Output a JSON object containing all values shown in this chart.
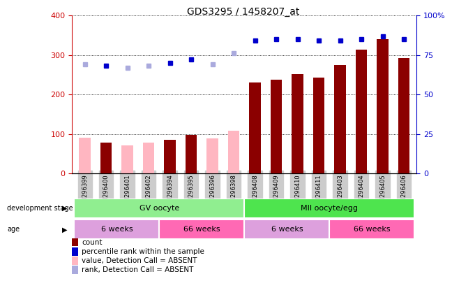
{
  "title": "GDS3295 / 1458207_at",
  "samples": [
    "GSM296399",
    "GSM296400",
    "GSM296401",
    "GSM296402",
    "GSM296394",
    "GSM296395",
    "GSM296396",
    "GSM296398",
    "GSM296408",
    "GSM296409",
    "GSM296410",
    "GSM296411",
    "GSM296403",
    "GSM296404",
    "GSM296405",
    "GSM296406"
  ],
  "count_values": [
    null,
    78,
    null,
    null,
    85,
    98,
    null,
    null,
    230,
    238,
    252,
    243,
    274,
    313,
    340,
    292
  ],
  "count_absent": [
    90,
    null,
    70,
    78,
    null,
    null,
    88,
    108,
    null,
    null,
    null,
    null,
    null,
    null,
    null,
    null
  ],
  "rank_values": [
    null,
    68,
    null,
    null,
    70,
    72,
    null,
    null,
    84,
    85,
    85,
    84,
    84,
    85,
    87,
    85
  ],
  "rank_absent": [
    69,
    null,
    67,
    68,
    null,
    null,
    69,
    76,
    null,
    null,
    null,
    null,
    null,
    null,
    null,
    null
  ],
  "ylim_left": [
    0,
    400
  ],
  "ylim_right": [
    0,
    100
  ],
  "yticks_left": [
    0,
    100,
    200,
    300,
    400
  ],
  "yticks_right": [
    0,
    25,
    50,
    75,
    100
  ],
  "ytick_labels_right": [
    "0",
    "25",
    "50",
    "75",
    "100%"
  ],
  "dev_stage_groups": [
    {
      "label": "GV oocyte",
      "start": 0,
      "end": 7,
      "color": "#90EE90"
    },
    {
      "label": "MII oocyte/egg",
      "start": 8,
      "end": 15,
      "color": "#4EE44E"
    }
  ],
  "age_groups": [
    {
      "label": "6 weeks",
      "start": 0,
      "end": 3,
      "color": "#DDA0DD"
    },
    {
      "label": "66 weeks",
      "start": 4,
      "end": 7,
      "color": "#FF69B4"
    },
    {
      "label": "6 weeks",
      "start": 8,
      "end": 11,
      "color": "#DDA0DD"
    },
    {
      "label": "66 weeks",
      "start": 12,
      "end": 15,
      "color": "#FF69B4"
    }
  ],
  "bar_color_present": "#8B0000",
  "bar_color_absent": "#FFB6C1",
  "rank_color_present": "#0000CC",
  "rank_color_absent": "#AAAADD",
  "bar_width": 0.55,
  "bg_color": "#FFFFFF",
  "plot_bg": "#FFFFFF",
  "tick_label_color_left": "#CC0000",
  "tick_label_color_right": "#0000CC",
  "xtick_bg": "#CCCCCC",
  "legend_items": [
    {
      "color": "#8B0000",
      "label": "count"
    },
    {
      "color": "#0000CC",
      "label": "percentile rank within the sample"
    },
    {
      "color": "#FFB6C1",
      "label": "value, Detection Call = ABSENT"
    },
    {
      "color": "#AAAADD",
      "label": "rank, Detection Call = ABSENT"
    }
  ]
}
